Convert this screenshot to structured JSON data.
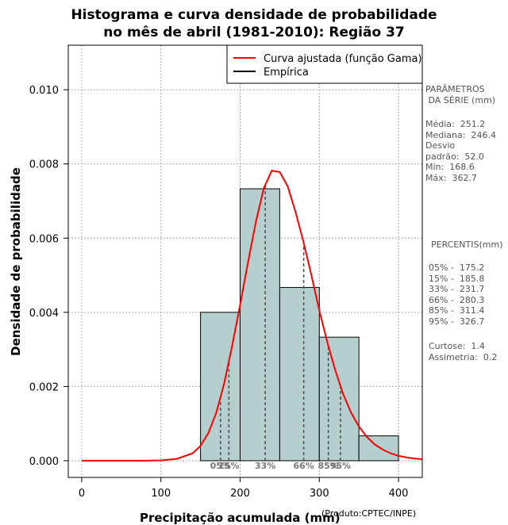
{
  "chart_data": {
    "type": "bar",
    "title_line1": "Histograma e curva densidade de probabilidade",
    "title_line2": "no mês de abril (1981-2010): Região 37",
    "xlabel": "Precipitação acumulada (mm)",
    "ylabel": "Densidade de probabilidade",
    "xlim": [
      -17,
      430
    ],
    "ylim": [
      -0.00045,
      0.0112
    ],
    "x_ticks": [
      0,
      100,
      200,
      300,
      400
    ],
    "y_ticks": [
      0.0,
      0.002,
      0.004,
      0.006,
      0.008,
      0.01
    ],
    "y_tick_labels": [
      "0.000",
      "0.002",
      "0.004",
      "0.006",
      "0.008",
      "0.010"
    ],
    "grid": true,
    "bar_color": "#b5cece",
    "curve_color": "#ff0000",
    "bins": [
      {
        "start": 150,
        "end": 200,
        "density": 0.004
      },
      {
        "start": 200,
        "end": 250,
        "density": 0.00733
      },
      {
        "start": 250,
        "end": 300,
        "density": 0.00467
      },
      {
        "start": 300,
        "end": 350,
        "density": 0.00333
      },
      {
        "start": 350,
        "end": 400,
        "density": 0.00067
      }
    ],
    "curve": {
      "name": "Curva ajustada (função Gama)",
      "x": [
        0,
        80,
        100,
        120,
        140,
        150,
        160,
        170,
        180,
        190,
        200,
        210,
        220,
        230,
        240,
        250,
        260,
        270,
        280,
        290,
        300,
        310,
        320,
        330,
        340,
        350,
        360,
        370,
        380,
        390,
        400,
        410,
        420,
        430
      ],
      "y": [
        0,
        2e-06,
        1e-05,
        5e-05,
        0.0002,
        0.0004,
        0.00075,
        0.0013,
        0.0021,
        0.0031,
        0.0042,
        0.00535,
        0.00645,
        0.00735,
        0.00782,
        0.00778,
        0.0074,
        0.0067,
        0.0059,
        0.005,
        0.00405,
        0.0032,
        0.00245,
        0.0018,
        0.0013,
        0.00092,
        0.00064,
        0.00044,
        0.0003,
        0.0002,
        0.00013,
        9e-05,
        6e-05,
        4e-05
      ]
    },
    "percentile_markers": [
      {
        "label": "05%",
        "x": 175.2
      },
      {
        "label": "15%",
        "x": 185.8
      },
      {
        "label": "33%",
        "x": 231.7
      },
      {
        "label": "66%",
        "x": 280.3
      },
      {
        "label": "85%",
        "x": 311.4
      },
      {
        "label": "95%",
        "x": 326.7
      }
    ],
    "legend": {
      "placement": "top-right",
      "entries": [
        {
          "label": "Curva ajustada (função Gama)",
          "color": "#ff0000"
        },
        {
          "label": "Empírica",
          "color": "#000000"
        }
      ]
    }
  },
  "side_panel": {
    "params_title": "PARÂMETROS\n DA SÉRIE (mm)",
    "params": "Média:  251.2\nMediana:  246.4\nDesvio\npadrão:  52.0\nMín:  168.6\nMáx:  362.7",
    "percentis_title": "PERCENTIS(mm)",
    "percentis": "05% -  175.2\n15% -  185.8\n33% -  231.7\n66% -  280.3\n85% -  311.4\n95% -  326.7",
    "stats": "Curtose:  1.4\nAssimetria:  0.2"
  },
  "credit": "(Produto:CPTEC/INPE)"
}
